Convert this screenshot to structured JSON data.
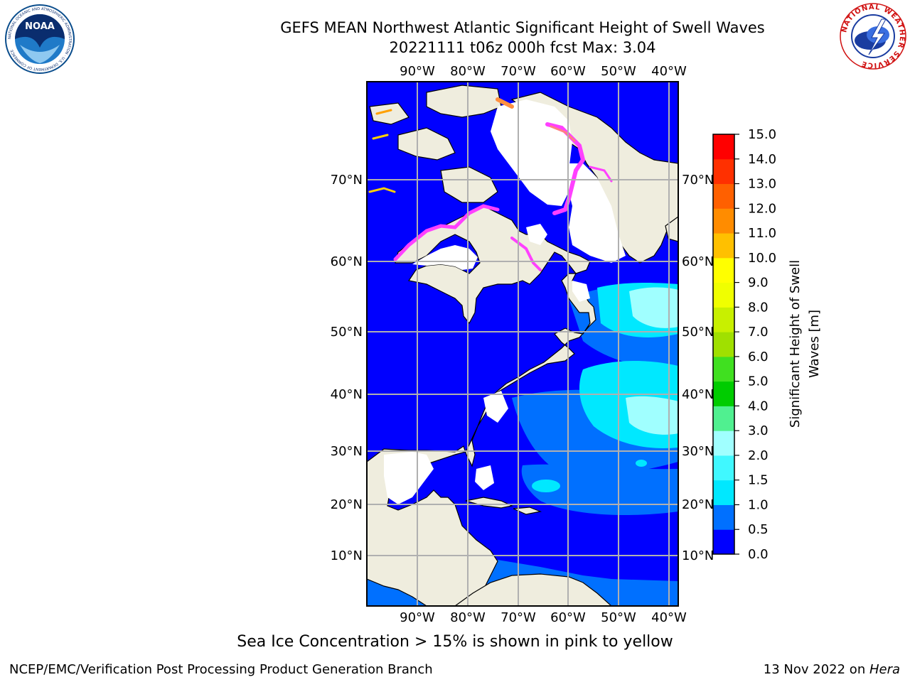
{
  "header": {
    "title_line1": "GEFS MEAN Northwest Atlantic Significant Height of Swell Waves",
    "title_line2": "20221111 t06z 000h fcst   Max: 3.04"
  },
  "logos": {
    "noaa_text": "NOAA",
    "noaa_ring_text": "NATIONAL OCEANIC AND ATMOSPHERIC ADMINISTRATION · U.S. DEPARTMENT OF COMMERCE",
    "nws_ring_text": "NATIONAL WEATHER SERVICE"
  },
  "map": {
    "lon_labels": [
      "90°W",
      "80°W",
      "70°W",
      "60°W",
      "50°W",
      "40°W"
    ],
    "lat_labels": [
      "70°N",
      "60°N",
      "50°N",
      "40°N",
      "30°N",
      "20°N",
      "10°N"
    ],
    "colors": {
      "land": "#efedde",
      "ice_white": "#ffffff",
      "grid": "#b0b0b0",
      "coast": "#000000"
    }
  },
  "colorbar": {
    "label_line1": "Significant Height of Swell",
    "label_line2": "Waves [m]",
    "ticks": [
      "0.0",
      "0.5",
      "1.0",
      "1.5",
      "2.0",
      "3.0",
      "4.0",
      "5.0",
      "6.0",
      "7.0",
      "8.0",
      "9.0",
      "10.0",
      "11.0",
      "12.0",
      "13.0",
      "14.0",
      "15.0"
    ],
    "colors": [
      "#0000ff",
      "#0070ff",
      "#00e8ff",
      "#40f8ff",
      "#a0ffff",
      "#50f090",
      "#00cc00",
      "#40e020",
      "#a0e000",
      "#c8f000",
      "#f0ff00",
      "#ffff00",
      "#ffc000",
      "#ff8c00",
      "#ff6000",
      "#ff3000",
      "#ff0000"
    ]
  },
  "chart_data": {
    "type": "heatmap",
    "title": "GEFS MEAN Northwest Atlantic Significant Height of Swell Waves",
    "subtitle": "20221111 t06z 000h fcst   Max: 3.04",
    "variable": "Significant Height of Swell Waves [m]",
    "max_value": 3.04,
    "lon_range": [
      -100,
      -38
    ],
    "lat_range": [
      2,
      79
    ],
    "color_levels": [
      0.0,
      0.5,
      1.0,
      1.5,
      2.0,
      3.0,
      4.0,
      5.0,
      6.0,
      7.0,
      8.0,
      9.0,
      10.0,
      11.0,
      12.0,
      13.0,
      14.0,
      15.0
    ],
    "grid": true
  },
  "footer": {
    "note": "Sea Ice Concentration > 15% is shown in pink to yellow",
    "credit": "NCEP/EMC/Verification Post Processing Product Generation Branch",
    "date_prefix": "13 Nov 2022 on ",
    "machine": "Hera"
  }
}
